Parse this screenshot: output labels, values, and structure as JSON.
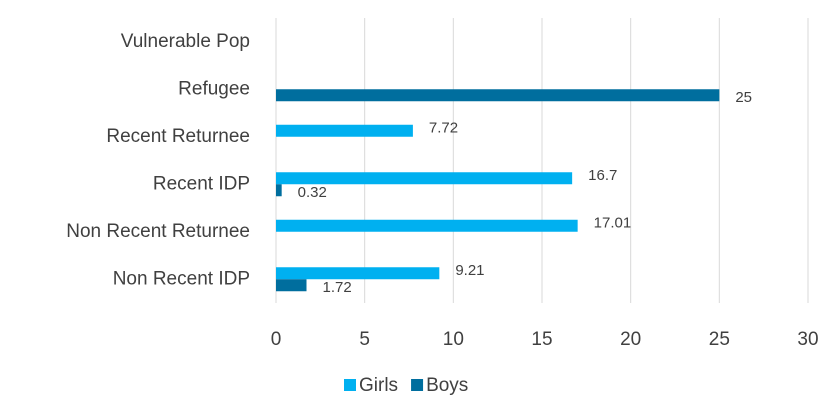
{
  "chart_data": {
    "type": "bar",
    "orientation": "horizontal",
    "categories": [
      "Vulnerable Pop",
      "Refugee",
      "Recent Returnee",
      "Recent IDP",
      "Non Recent Returnee",
      "Non Recent IDP"
    ],
    "series": [
      {
        "name": "Girls",
        "color": "#00b0f0",
        "values": [
          null,
          null,
          7.72,
          16.7,
          17.01,
          9.21
        ]
      },
      {
        "name": "Boys",
        "color": "#006e9e",
        "values": [
          null,
          25,
          null,
          0.32,
          null,
          1.72
        ]
      }
    ],
    "xlim": [
      0,
      30
    ],
    "xticks": [
      0,
      5,
      10,
      15,
      20,
      25,
      30
    ],
    "grid": true,
    "legend": "bottom"
  }
}
